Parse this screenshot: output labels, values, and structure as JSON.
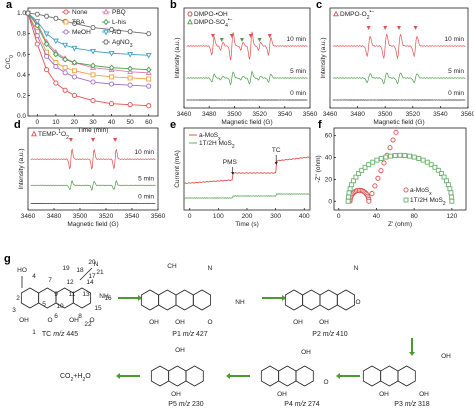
{
  "chart_data": [
    {
      "panel": "a",
      "type": "line",
      "xlabel": "Time (min)",
      "ylabel": "C/C0",
      "xlim": [
        -5,
        65
      ],
      "ylim": [
        0,
        1.05
      ],
      "xticks": [
        "0",
        "10",
        "20",
        "30",
        "40",
        "50",
        "60"
      ],
      "yticks": [
        "0.0",
        "0.2",
        "0.4",
        "0.6",
        "0.8",
        "1.0"
      ],
      "x": [
        -5,
        0,
        5,
        10,
        15,
        20,
        30,
        40,
        50,
        60
      ],
      "series": [
        {
          "name": "None",
          "color": "#e05050",
          "values": [
            1.0,
            0.7,
            0.45,
            0.32,
            0.25,
            0.2,
            0.15,
            0.12,
            0.11,
            0.1
          ]
        },
        {
          "name": "PBQ",
          "color": "#e07ab0",
          "values": [
            1.0,
            0.9,
            0.72,
            0.62,
            0.56,
            0.52,
            0.47,
            0.45,
            0.43,
            0.42
          ]
        },
        {
          "name": "TBA",
          "color": "#f0a040",
          "values": [
            1.0,
            0.82,
            0.62,
            0.52,
            0.47,
            0.44,
            0.4,
            0.38,
            0.37,
            0.36
          ]
        },
        {
          "name": "L-his",
          "color": "#4a9c4a",
          "values": [
            1.0,
            0.88,
            0.7,
            0.6,
            0.55,
            0.52,
            0.49,
            0.47,
            0.46,
            0.45
          ]
        },
        {
          "name": "MeOH",
          "color": "#a070c0",
          "values": [
            1.0,
            0.78,
            0.58,
            0.48,
            0.42,
            0.38,
            0.33,
            0.31,
            0.3,
            0.29
          ]
        },
        {
          "name": "AO",
          "color": "#40a0c0",
          "values": [
            1.0,
            0.92,
            0.8,
            0.73,
            0.69,
            0.66,
            0.63,
            0.61,
            0.6,
            0.59
          ]
        },
        {
          "name": "AgNO3",
          "color": "#707070",
          "values": [
            1.0,
            0.99,
            0.97,
            0.95,
            0.92,
            0.9,
            0.86,
            0.84,
            0.82,
            0.8
          ]
        }
      ]
    },
    {
      "panel": "b",
      "type": "line",
      "xlabel": "Magnetic field (G)",
      "ylabel": "Intensity (a.u.)",
      "xticks": [
        "3460",
        "3480",
        "3500",
        "3520",
        "3540",
        "3560"
      ],
      "legend": [
        "DMPO-•OH",
        "DMPO-SO4•−"
      ],
      "traces": [
        "10 min",
        "5 min",
        "0 min"
      ]
    },
    {
      "panel": "c",
      "type": "line",
      "xlabel": "Magnetic field (G)",
      "ylabel": "Intensity (a.u.)",
      "xticks": [
        "3460",
        "3480",
        "3500",
        "3520",
        "3540",
        "3560"
      ],
      "legend": [
        "DMPO-O2•−"
      ],
      "traces": [
        "10 min",
        "5 min",
        "0 min"
      ]
    },
    {
      "panel": "d",
      "type": "line",
      "xlabel": "Magnetic field (G)",
      "ylabel": "Intensity (a.u.)",
      "xticks": [
        "3460",
        "3480",
        "3500",
        "3520",
        "3540",
        "3560"
      ],
      "legend": [
        "TEMP-1O2"
      ],
      "traces": [
        "10 min",
        "5 min",
        "0 min"
      ]
    },
    {
      "panel": "e",
      "type": "line",
      "xlabel": "Time (s)",
      "ylabel": "Current (mA)",
      "xticks": [
        "0",
        "100",
        "200",
        "300",
        "400"
      ],
      "series": [
        {
          "name": "a-MoSx",
          "color": "#e05050"
        },
        {
          "name": "1T/2H MoS2",
          "color": "#6ab06a"
        }
      ],
      "annotations": [
        "PMS",
        "TC"
      ]
    },
    {
      "panel": "f",
      "type": "scatter",
      "xlabel": "Z' (ohm)",
      "ylabel": "-Z'' (ohm)",
      "xticks": [
        "0",
        "40",
        "80",
        "120"
      ],
      "yticks": [
        "0",
        "20",
        "40",
        "60"
      ],
      "series": [
        {
          "name": "a-MoSx",
          "color": "#e05050"
        },
        {
          "name": "1T/2H MoS2",
          "color": "#6ab06a"
        }
      ]
    }
  ],
  "panel_labels": [
    "a",
    "b",
    "c",
    "d",
    "e",
    "f",
    "g"
  ],
  "scheme": {
    "compounds": [
      {
        "label": "TC m/z 445"
      },
      {
        "label": "P1 m/z 427"
      },
      {
        "label": "P2 m/z 410"
      },
      {
        "label": "P3 m/z 318"
      },
      {
        "label": "P4 m/z 274"
      },
      {
        "label": "P5 m/z 230"
      }
    ],
    "final_product": "CO2+H2O",
    "tc_atom_labels": [
      "1",
      "2",
      "3",
      "4",
      "5",
      "6",
      "7",
      "8",
      "9",
      "10",
      "11",
      "12",
      "13",
      "14",
      "15",
      "16",
      "17",
      "18",
      "19",
      "20",
      "21",
      "22"
    ]
  }
}
